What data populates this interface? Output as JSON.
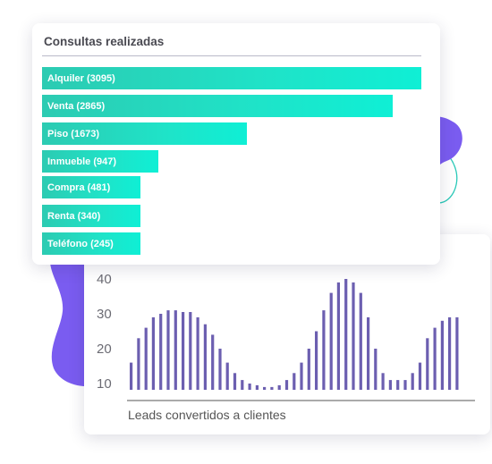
{
  "consultas": {
    "title": "Consultas realizadas",
    "bars": [
      {
        "label": "Alquiler (3095)",
        "value": 3095
      },
      {
        "label": "Venta (2865)",
        "value": 2865
      },
      {
        "label": "Piso (1673)",
        "value": 1673
      },
      {
        "label": "Inmueble (947)",
        "value": 947
      },
      {
        "label": "Compra (481)",
        "value": 481
      },
      {
        "label": "Renta (340)",
        "value": 340
      },
      {
        "label": "Teléfono (245)",
        "value": 245
      }
    ]
  },
  "leads": {
    "caption": "Leads convertidos a clientes",
    "y_ticks": [
      "40",
      "30",
      "20",
      "10"
    ]
  },
  "chart_data": {
    "type": "bar",
    "xlabel": "Leads convertidos a clientes",
    "ylim": [
      7,
      42
    ],
    "yticks": [
      10,
      20,
      30,
      40
    ],
    "values": [
      16,
      23,
      26,
      29,
      30,
      31,
      31,
      30.5,
      30.5,
      29,
      27,
      24,
      20,
      16,
      13,
      11,
      10,
      9.5,
      9,
      9,
      9.5,
      11,
      13,
      16,
      20,
      25,
      31,
      36,
      39,
      40,
      39,
      36,
      29,
      20,
      13,
      11,
      11,
      11,
      13,
      16,
      23,
      26,
      28,
      29,
      29
    ]
  },
  "colors": {
    "teal_bar": "#1fe3c8",
    "purple_bar": "#6c5fb0",
    "purple_blob": "#7a5cf0",
    "teal_outline": "#29c9b8"
  }
}
